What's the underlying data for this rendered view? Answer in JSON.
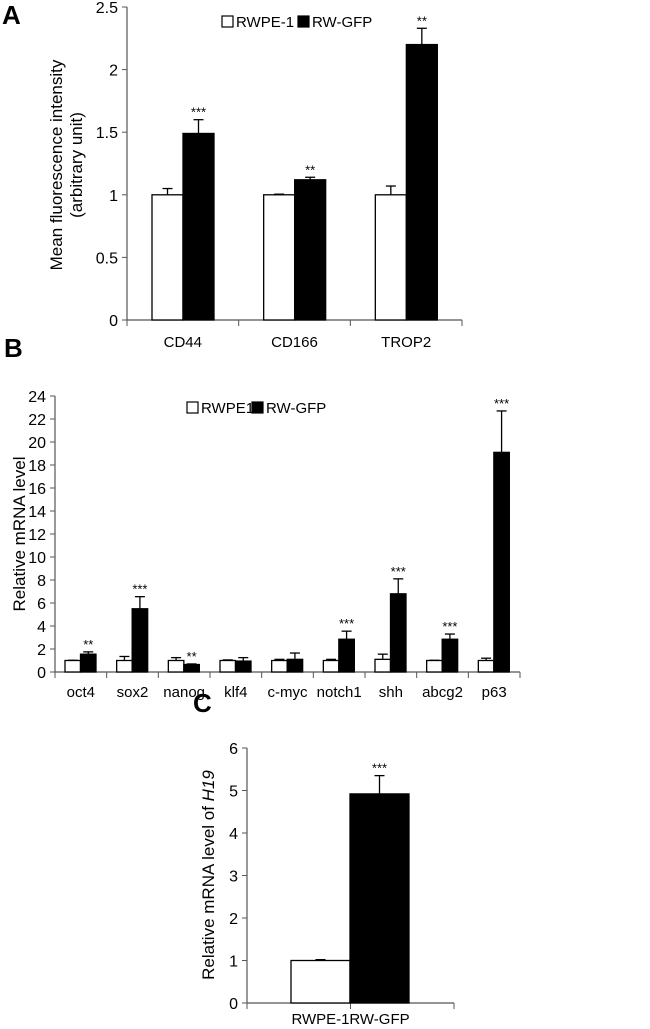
{
  "chart_data": [
    {
      "panel": "A",
      "type": "bar",
      "ylabel": [
        "Mean fluorescence intensity",
        "(arbitrary unit)"
      ],
      "ylim": [
        0,
        2.5
      ],
      "yticks": [
        "0",
        "0.5",
        "1",
        "1.5",
        "2",
        "2.5"
      ],
      "ytick_values": [
        0,
        0.5,
        1,
        1.5,
        2,
        2.5
      ],
      "categories": [
        "CD44",
        "CD166",
        "TROP2"
      ],
      "legend": "top-center",
      "series": [
        {
          "name": "RWPE-1",
          "color": "#ffffff",
          "values": [
            1,
            1,
            1
          ],
          "errors": [
            0.05,
            0.005,
            0.07
          ],
          "sig": [
            "",
            "",
            ""
          ]
        },
        {
          "name": "RW-GFP",
          "color": "#000000",
          "values": [
            1.49,
            1.12,
            2.2
          ],
          "errors": [
            0.11,
            0.02,
            0.13
          ],
          "sig": [
            "***",
            "**",
            "**"
          ]
        }
      ]
    },
    {
      "panel": "B",
      "type": "bar",
      "ylabel": [
        "Relative mRNA  level"
      ],
      "ylim": [
        0,
        24
      ],
      "yticks": [
        "0",
        "2",
        "4",
        "6",
        "8",
        "10",
        "12",
        "14",
        "16",
        "18",
        "20",
        "22",
        "24"
      ],
      "ytick_values": [
        0,
        2,
        4,
        6,
        8,
        10,
        12,
        14,
        16,
        18,
        20,
        22,
        24
      ],
      "categories": [
        "oct4",
        "sox2",
        "nanog",
        "klf4",
        "c-myc",
        "notch1",
        "shh",
        "abcg2",
        "p63"
      ],
      "legend": "top-center",
      "series": [
        {
          "name": "RWPE1",
          "color": "#ffffff",
          "values": [
            1,
            1,
            1,
            1,
            1,
            1,
            1.1,
            1,
            1
          ],
          "errors": [
            0.02,
            0.35,
            0.25,
            0.05,
            0.1,
            0.1,
            0.45,
            0.02,
            0.2
          ],
          "sig": [
            "",
            "",
            "",
            "",
            "",
            "",
            "",
            "",
            ""
          ]
        },
        {
          "name": "RW-GFP",
          "color": "#000000",
          "values": [
            1.55,
            5.5,
            0.65,
            0.95,
            1.1,
            2.85,
            6.8,
            2.85,
            19.1
          ],
          "errors": [
            0.2,
            1.05,
            0.05,
            0.3,
            0.55,
            0.7,
            1.3,
            0.45,
            3.6
          ],
          "sig": [
            "**",
            "***",
            "**",
            "",
            "",
            "***",
            "***",
            "***",
            "***"
          ]
        }
      ]
    },
    {
      "panel": "C",
      "type": "bar",
      "ylabel": [
        "Relative mRNA  level of ",
        "H19"
      ],
      "ylim": [
        0,
        6
      ],
      "yticks": [
        "0",
        "1",
        "2",
        "3",
        "4",
        "5",
        "6"
      ],
      "ytick_values": [
        0,
        1,
        2,
        3,
        4,
        5,
        6
      ],
      "categories": [
        "RWPE-1",
        "RW-GFP"
      ],
      "values": [
        1,
        4.92
      ],
      "errors": [
        0.02,
        0.43
      ],
      "colors": [
        "#ffffff",
        "#000000"
      ],
      "sig": [
        "",
        "***"
      ]
    }
  ]
}
